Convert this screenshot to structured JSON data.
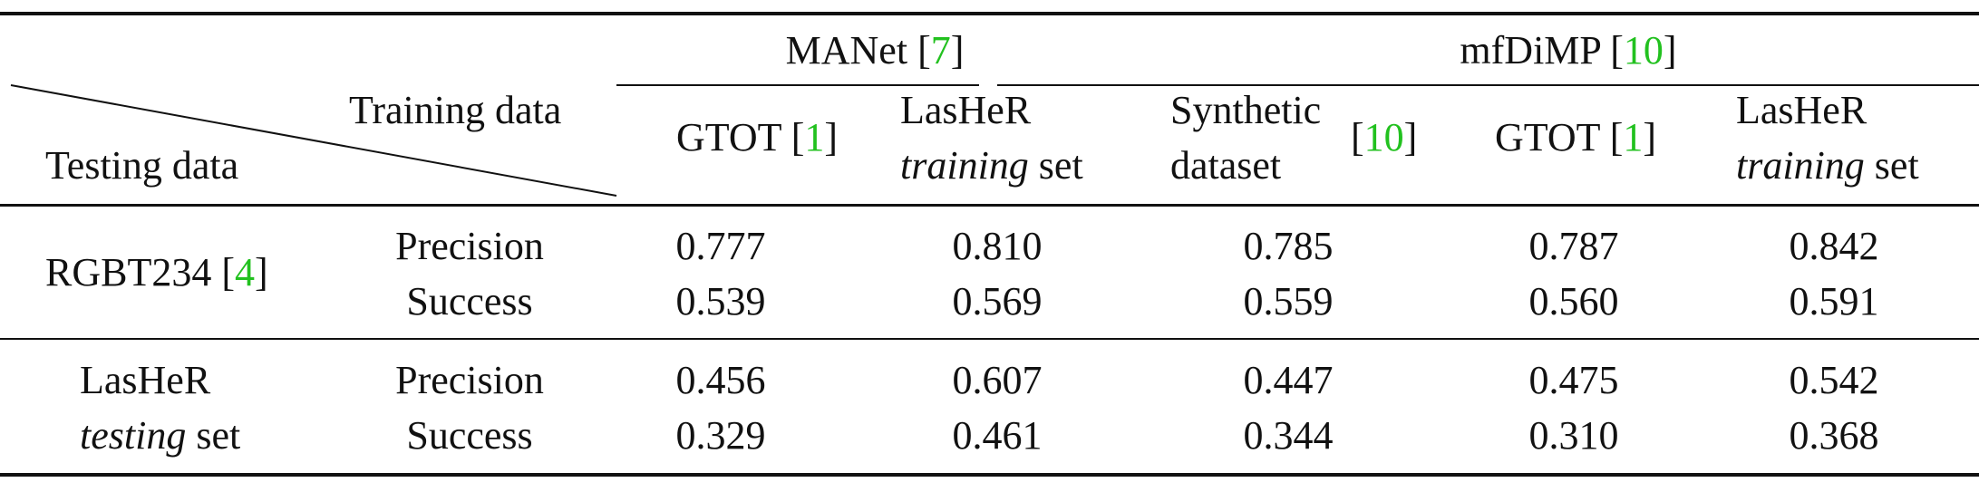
{
  "corner": {
    "training_data": "Training data",
    "testing_data": "Testing data"
  },
  "groups": {
    "manet": {
      "name": "MANet",
      "cite": "7"
    },
    "mfdimp": {
      "name": "mfDiMP",
      "cite": "10"
    }
  },
  "columns": {
    "c1": {
      "name": "GTOT",
      "cite": "1"
    },
    "c2": {
      "line1": "LasHeR",
      "italic": "training",
      "rest": "set"
    },
    "c3": {
      "line1": "Synthetic",
      "line2": "dataset",
      "cite": "10"
    },
    "c4": {
      "name": "GTOT",
      "cite": "1"
    },
    "c5": {
      "line1": "LasHeR",
      "italic": "training",
      "rest": "set"
    }
  },
  "rows": [
    {
      "dataset": "RGBT234",
      "cite": "4",
      "metrics": [
        "Precision",
        "Success"
      ],
      "values": [
        [
          "0.777",
          "0.810",
          "0.785",
          "0.787",
          "0.842"
        ],
        [
          "0.539",
          "0.569",
          "0.559",
          "0.560",
          "0.591"
        ]
      ]
    },
    {
      "dataset_line1": "LasHeR",
      "dataset_italic": "testing",
      "dataset_rest": "set",
      "metrics": [
        "Precision",
        "Success"
      ],
      "values": [
        [
          "0.456",
          "0.607",
          "0.447",
          "0.475",
          "0.542"
        ],
        [
          "0.329",
          "0.461",
          "0.344",
          "0.310",
          "0.368"
        ]
      ]
    }
  ]
}
